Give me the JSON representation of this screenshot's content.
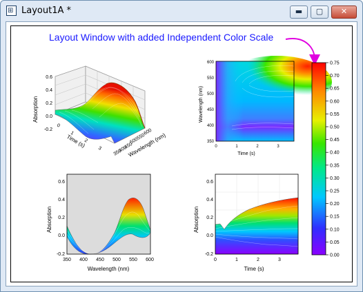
{
  "window": {
    "title": "Layout1A *",
    "app_icon": "origin-layout-icon",
    "buttons": {
      "minimize": "minimize-icon",
      "maximize": "maximize-icon",
      "close": "close-icon"
    }
  },
  "annotation": {
    "text": "Layout Window with added Independent Color Scale",
    "color": "#1a1aff",
    "arrow_color": "#e000e0"
  },
  "colors": {
    "plot_bg": "#dcdcdc"
  },
  "color_scale": {
    "labels": [
      "0.75",
      "0.70",
      "0.65",
      "0.60",
      "0.55",
      "0.50",
      "0.45",
      "0.40",
      "0.35",
      "0.30",
      "0.25",
      "0.20",
      "0.15",
      "0.10",
      "0.05",
      "0.00"
    ]
  },
  "graph_3d": {
    "y_label": "Absorption",
    "x_label": "Time (s)",
    "z_label": "Wavelength (nm)",
    "y_ticks": [
      "0.6",
      "0.4",
      "0.2",
      "0.0",
      "-0.2"
    ],
    "x_ticks": [
      "0",
      "1",
      "2",
      "3"
    ],
    "z_ticks": [
      "350",
      "400",
      "450",
      "500",
      "550",
      "600"
    ]
  },
  "graph_contour": {
    "y_label": "Wavelength (nm)",
    "x_label": "Time (s)",
    "y_ticks": [
      "600",
      "550",
      "500",
      "450",
      "400",
      "350"
    ],
    "x_ticks": [
      "0",
      "1",
      "2",
      "3"
    ]
  },
  "graph_wavelength": {
    "y_label": "Absorption",
    "x_label": "Wavelength (nm)",
    "y_ticks": [
      "0.6",
      "0.4",
      "0.2",
      "0.0",
      "-0.2"
    ],
    "x_ticks": [
      "350",
      "400",
      "450",
      "500",
      "550",
      "600"
    ]
  },
  "graph_time": {
    "y_label": "Absorption",
    "x_label": "Time (s)",
    "y_ticks": [
      "0.6",
      "0.4",
      "0.2",
      "0.0",
      "-0.2"
    ],
    "x_ticks": [
      "0",
      "1",
      "2",
      "3"
    ]
  }
}
